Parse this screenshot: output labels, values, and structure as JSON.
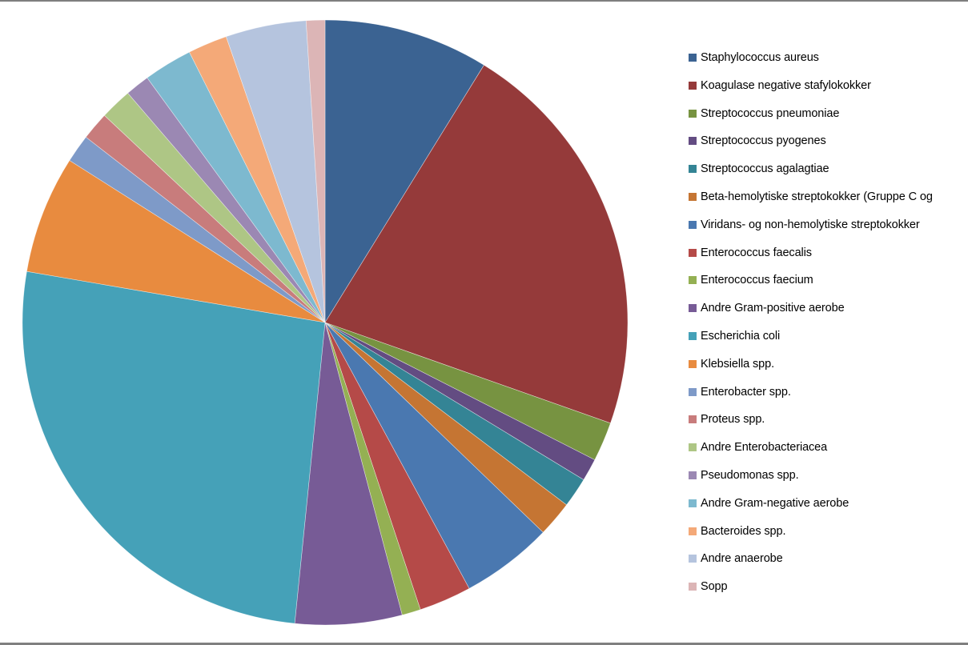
{
  "chart_data": {
    "type": "pie",
    "title": "",
    "legend_position": "right",
    "start_angle_deg": 0,
    "direction": "clockwise",
    "categories": [
      "Staphylococcus aureus",
      "Koagulase negative stafylokokker",
      "Streptococcus pneumoniae",
      "Streptococcus pyogenes",
      "Streptococcus agalagtiae",
      "Beta-hemolytiske streptokokker (Gruppe C og",
      "Viridans- og non-hemolytiske streptokokker",
      "Enterococcus faecalis",
      "Enterococcus faecium",
      "Andre Gram-positive aerobe",
      "Escherichia coli",
      "Klebsiella spp.",
      "Enterobacter spp.",
      "Proteus spp.",
      "Andre Enterobacteriacea",
      "Pseudomonas spp.",
      "Andre Gram-negative aerobe",
      "Bacteroides spp.",
      "Andre anaerobe",
      "Sopp"
    ],
    "values": [
      8.8,
      21.6,
      2.1,
      1.2,
      1.6,
      1.9,
      4.9,
      2.8,
      1.0,
      5.7,
      26.1,
      6.3,
      1.5,
      1.5,
      1.7,
      1.3,
      2.6,
      2.1,
      4.3,
      1.0
    ],
    "value_unit": "percent (estimated from slice angles)",
    "colors": [
      "#3b6392",
      "#953a3a",
      "#779341",
      "#634c82",
      "#348495",
      "#c57533",
      "#4a78b0",
      "#b54a48",
      "#94b053",
      "#775b96",
      "#45a1b8",
      "#e88b3f",
      "#7e9ac8",
      "#c87c7c",
      "#aec685",
      "#9b88b3",
      "#7db9cf",
      "#f4a978",
      "#b5c4de",
      "#dcb5b6"
    ]
  },
  "legend": {
    "items": [
      {
        "label": "Staphylococcus aureus",
        "color": "#3b6392"
      },
      {
        "label": "Koagulase negative stafylokokker",
        "color": "#953a3a"
      },
      {
        "label": "Streptococcus pneumoniae",
        "color": "#779341"
      },
      {
        "label": "Streptococcus pyogenes",
        "color": "#634c82"
      },
      {
        "label": "Streptococcus agalagtiae",
        "color": "#348495"
      },
      {
        "label": "Beta-hemolytiske streptokokker (Gruppe C og",
        "color": "#c57533"
      },
      {
        "label": "Viridans- og non-hemolytiske streptokokker",
        "color": "#4a78b0"
      },
      {
        "label": "Enterococcus faecalis",
        "color": "#b54a48"
      },
      {
        "label": "Enterococcus faecium",
        "color": "#94b053"
      },
      {
        "label": "Andre Gram-positive aerobe",
        "color": "#775b96"
      },
      {
        "label": "Escherichia coli",
        "color": "#45a1b8"
      },
      {
        "label": "Klebsiella spp.",
        "color": "#e88b3f"
      },
      {
        "label": "Enterobacter spp.",
        "color": "#7e9ac8"
      },
      {
        "label": "Proteus spp.",
        "color": "#c87c7c"
      },
      {
        "label": "Andre Enterobacteriacea",
        "color": "#aec685"
      },
      {
        "label": "Pseudomonas spp.",
        "color": "#9b88b3"
      },
      {
        "label": "Andre Gram-negative aerobe",
        "color": "#7db9cf"
      },
      {
        "label": "Bacteroides spp.",
        "color": "#f4a978"
      },
      {
        "label": "Andre anaerobe",
        "color": "#b5c4de"
      },
      {
        "label": "Sopp",
        "color": "#dcb5b6"
      }
    ]
  }
}
